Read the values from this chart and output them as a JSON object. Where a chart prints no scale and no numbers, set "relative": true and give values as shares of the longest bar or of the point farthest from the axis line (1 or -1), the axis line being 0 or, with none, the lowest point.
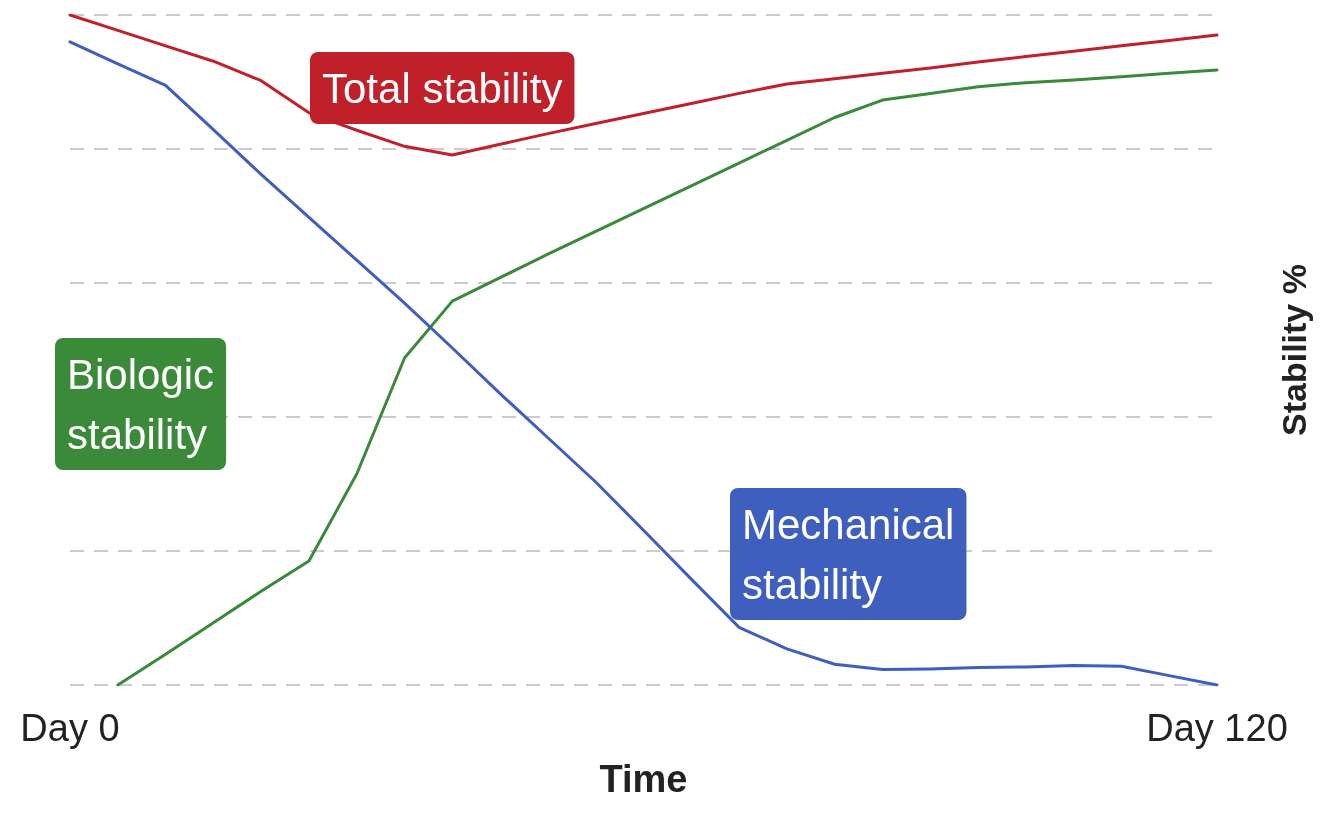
{
  "chart_data": {
    "type": "line",
    "xlabel": "Time",
    "ylabel": "Stability %",
    "relative": true,
    "grid": "y",
    "legend": false,
    "marker": "none",
    "line_style": "solid",
    "categories": [
      "Day 0",
      null,
      null,
      null,
      null,
      null,
      null,
      null,
      null,
      null,
      null,
      null,
      null,
      null,
      null,
      null,
      null,
      null,
      null,
      null,
      null,
      null,
      null,
      null,
      "Day 120"
    ],
    "series": [
      {
        "name": "Total stability",
        "color": "#c0202a",
        "values": [
          1,
          0.977,
          0.954,
          0.931,
          0.902,
          0.854,
          0.828,
          0.804,
          0.791,
          0.807,
          0.823,
          0.838,
          0.853,
          0.868,
          0.883,
          0.897,
          0.905,
          0.913,
          0.921,
          0.93,
          0.938,
          0.946,
          0.954,
          0.962,
          0.97
        ]
      },
      {
        "name": "Biologic stability",
        "color": "#3a8a3a",
        "values": [
          null,
          0,
          0.046,
          0.093,
          0.14,
          0.185,
          0.315,
          0.488,
          0.573,
          0.608,
          0.643,
          0.677,
          0.711,
          0.745,
          0.779,
          0.813,
          0.847,
          0.873,
          0.883,
          0.893,
          0.899,
          0.903,
          0.908,
          0.913,
          0.918
        ]
      },
      {
        "name": "Mechanical stability",
        "color": "#3f5fbf",
        "values": [
          0.96,
          0.927,
          0.895,
          0.829,
          0.762,
          0.698,
          0.634,
          0.57,
          0.503,
          0.435,
          0.369,
          0.303,
          0.231,
          0.158,
          0.086,
          0.054,
          0.031,
          0.023,
          0.024,
          0.026,
          0.027,
          0.029,
          0.028,
          0.014,
          0
        ]
      }
    ]
  }
}
